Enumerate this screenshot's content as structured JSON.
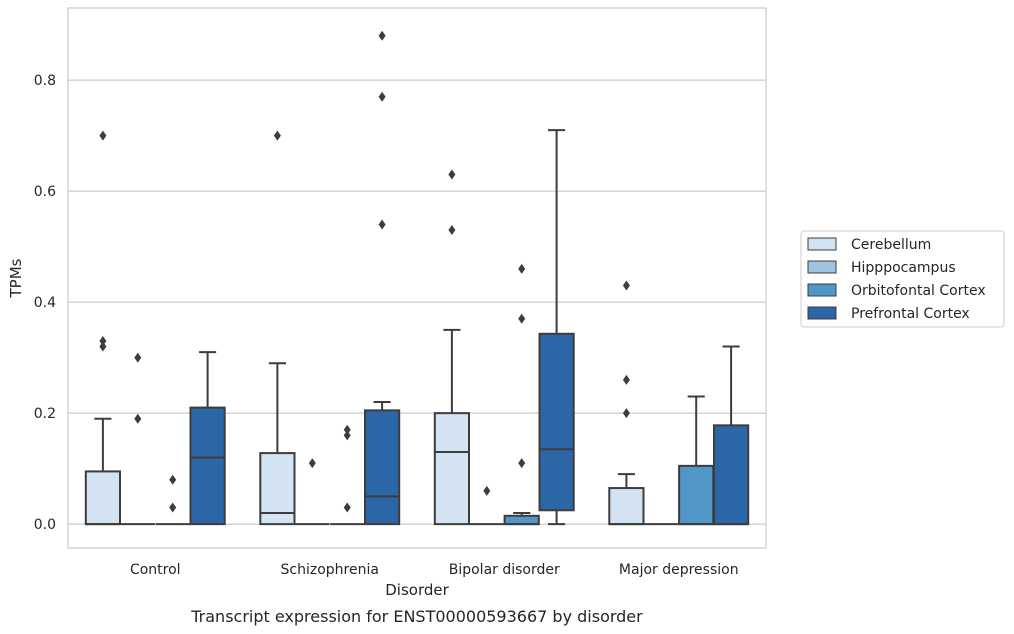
{
  "chart_data": {
    "type": "box",
    "title": "",
    "xlabel": "Disorder",
    "ylabel": "TPMs",
    "caption": "Transcript expression for ENST00000593667 by disorder",
    "ylim": [
      -0.043,
      0.93
    ],
    "yticks": [
      0.0,
      0.2,
      0.4,
      0.6,
      0.8
    ],
    "ytick_labels": [
      "0.0",
      "0.2",
      "0.4",
      "0.6",
      "0.8"
    ],
    "grid": "horizontal",
    "legend_position": "right",
    "categories": [
      "Control",
      "Schizophrenia",
      "Bipolar disorder",
      "Major depression"
    ],
    "series": [
      {
        "name": "Cerebellum",
        "color": "#d4e3f1",
        "boxes": [
          {
            "q1": 0.0,
            "median": 0.0,
            "q3": 0.095,
            "whisker_low": 0.0,
            "whisker_high": 0.19,
            "outliers": [
              0.32,
              0.33,
              0.7
            ]
          },
          {
            "q1": 0.0,
            "median": 0.02,
            "q3": 0.128,
            "whisker_low": 0.0,
            "whisker_high": 0.29,
            "outliers": [
              0.7
            ]
          },
          {
            "q1": 0.0,
            "median": 0.13,
            "q3": 0.2,
            "whisker_low": 0.0,
            "whisker_high": 0.35,
            "outliers": [
              0.53,
              0.63
            ]
          },
          {
            "q1": 0.0,
            "median": 0.0,
            "q3": 0.065,
            "whisker_low": 0.0,
            "whisker_high": 0.09,
            "outliers": [
              0.2,
              0.26,
              0.43
            ]
          }
        ]
      },
      {
        "name": "Hipppocampus",
        "color": "#9ec4df",
        "boxes": [
          {
            "q1": 0.0,
            "median": 0.0,
            "q3": 0.0,
            "whisker_low": 0.0,
            "whisker_high": 0.0,
            "outliers": [
              0.19,
              0.3
            ]
          },
          {
            "q1": 0.0,
            "median": 0.0,
            "q3": 0.0,
            "whisker_low": 0.0,
            "whisker_high": 0.0,
            "outliers": [
              0.11
            ]
          },
          {
            "q1": 0.0,
            "median": 0.0,
            "q3": 0.0,
            "whisker_low": 0.0,
            "whisker_high": 0.0,
            "outliers": [
              0.06
            ]
          },
          {
            "q1": 0.0,
            "median": 0.0,
            "q3": 0.0,
            "whisker_low": 0.0,
            "whisker_high": 0.0,
            "outliers": []
          }
        ]
      },
      {
        "name": "Orbitofontal Cortex",
        "color": "#5196c8",
        "boxes": [
          {
            "q1": 0.0,
            "median": 0.0,
            "q3": 0.0,
            "whisker_low": 0.0,
            "whisker_high": 0.0,
            "outliers": [
              0.03,
              0.08
            ]
          },
          {
            "q1": 0.0,
            "median": 0.0,
            "q3": 0.0,
            "whisker_low": 0.0,
            "whisker_high": 0.0,
            "outliers": [
              0.03,
              0.16,
              0.17
            ]
          },
          {
            "q1": 0.0,
            "median": 0.0,
            "q3": 0.015,
            "whisker_low": 0.0,
            "whisker_high": 0.02,
            "outliers": [
              0.11,
              0.37,
              0.46
            ]
          },
          {
            "q1": 0.0,
            "median": 0.0,
            "q3": 0.105,
            "whisker_low": 0.0,
            "whisker_high": 0.23,
            "outliers": []
          }
        ]
      },
      {
        "name": "Prefrontal Cortex",
        "color": "#2b67a6",
        "boxes": [
          {
            "q1": 0.0,
            "median": 0.12,
            "q3": 0.21,
            "whisker_low": 0.0,
            "whisker_high": 0.31,
            "outliers": []
          },
          {
            "q1": 0.0,
            "median": 0.05,
            "q3": 0.205,
            "whisker_low": 0.0,
            "whisker_high": 0.22,
            "outliers": [
              0.54,
              0.77,
              0.88
            ]
          },
          {
            "q1": 0.025,
            "median": 0.135,
            "q3": 0.343,
            "whisker_low": 0.0,
            "whisker_high": 0.71,
            "outliers": []
          },
          {
            "q1": 0.0,
            "median": 0.0,
            "q3": 0.178,
            "whisker_low": 0.0,
            "whisker_high": 0.32,
            "outliers": []
          }
        ]
      }
    ]
  }
}
